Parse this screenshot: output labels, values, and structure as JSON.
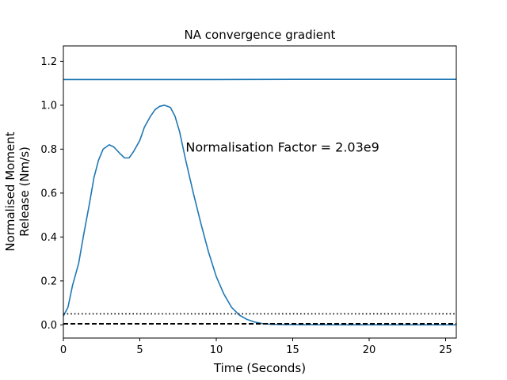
{
  "chart_data": {
    "type": "line",
    "title": "NA convergence gradient",
    "xlabel": "Time (Seconds)",
    "ylabel_lines": [
      "Normalised Moment",
      "Release (Nm/s)"
    ],
    "xlim": [
      0,
      25.7
    ],
    "ylim": [
      -0.06,
      1.27
    ],
    "x_ticks": [
      0,
      5,
      10,
      15,
      20,
      25
    ],
    "y_ticks": [
      0.0,
      0.2,
      0.4,
      0.6,
      0.8,
      1.0,
      1.2
    ],
    "annotation": {
      "text": "Normalisation Factor = 2.03e9",
      "x": 8.0,
      "y": 0.81
    },
    "grid": false,
    "series": [
      {
        "color": "#1f77b4",
        "style": "solid",
        "x": [
          0,
          0.3,
          0.6,
          1.0,
          1.3,
          1.7,
          2.0,
          2.3,
          2.6,
          3.0,
          3.3,
          3.7,
          4.0,
          4.3,
          4.6,
          5.0,
          5.3,
          5.7,
          6.0,
          6.3,
          6.6,
          7.0,
          7.3,
          7.6,
          8.0,
          8.5,
          9.0,
          9.5,
          10.0,
          10.5,
          11.0,
          11.5,
          12.0,
          12.5,
          13.0,
          13.5,
          14.0,
          14.5,
          15.0,
          16.0,
          18.0,
          20.0,
          22.0,
          24.0,
          25.7
        ],
        "y": [
          0.04,
          0.08,
          0.18,
          0.28,
          0.4,
          0.55,
          0.67,
          0.75,
          0.8,
          0.82,
          0.81,
          0.78,
          0.76,
          0.76,
          0.79,
          0.84,
          0.9,
          0.95,
          0.98,
          0.995,
          1.0,
          0.99,
          0.95,
          0.88,
          0.75,
          0.6,
          0.46,
          0.33,
          0.22,
          0.14,
          0.08,
          0.045,
          0.025,
          0.013,
          0.006,
          0.003,
          0.002,
          0.001,
          0.001,
          0.0005,
          0.0003,
          0.0002,
          0.0001,
          0.0001,
          0.0
        ]
      },
      {
        "color": "#1f77b4",
        "style": "solid",
        "x": [
          0,
          5,
          10,
          15,
          20,
          25.7
        ],
        "y": [
          1.117,
          1.117,
          1.117,
          1.118,
          1.118,
          1.118
        ]
      },
      {
        "color": "#000000",
        "style": "dotted",
        "x": [
          0,
          25.7
        ],
        "y": [
          0.05,
          0.05
        ]
      },
      {
        "color": "#000000",
        "style": "dashed",
        "x": [
          0,
          25.7
        ],
        "y": [
          0.005,
          0.005
        ]
      }
    ]
  }
}
